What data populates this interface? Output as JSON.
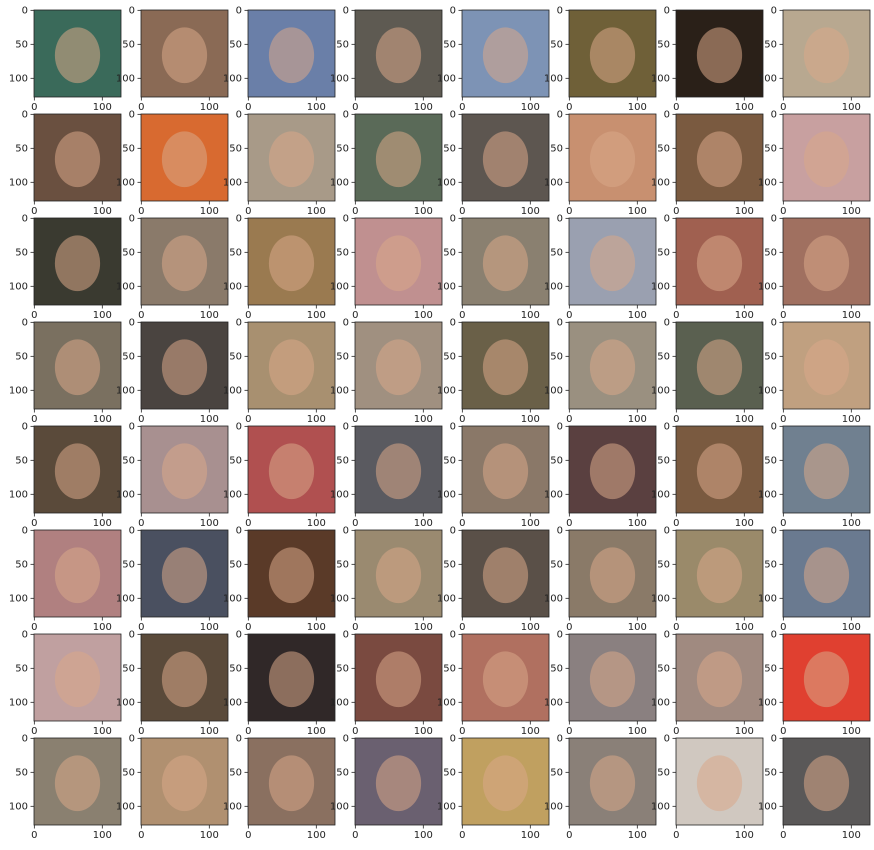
{
  "chart_data": {
    "type": "image_grid",
    "xlim": [
      -0.5,
      127.5
    ],
    "ylim": [
      127.5,
      -0.5
    ],
    "xticks": [
      0,
      100
    ],
    "yticks": [
      0,
      50,
      100
    ],
    "image_colors": [
      "#3a6a5a",
      "#8a6a55",
      "#6a7fa8",
      "#5e5a52",
      "#7d93b5",
      "#6f6038",
      "#2a2018",
      "#b8a890",
      "#6a5040",
      "#d86a30",
      "#a89a88",
      "#5a6a58",
      "#5d5650",
      "#c89070",
      "#7a5a40",
      "#c8a0a0",
      "#3a3a30",
      "#8a7a6a",
      "#9a7a50",
      "#c09090",
      "#8a8070",
      "#9aa0b0",
      "#a06050",
      "#a07060",
      "#7a7060",
      "#4a4440",
      "#a89070",
      "#a09080",
      "#6a6048",
      "#9a9080",
      "#5a6050",
      "#c0a080",
      "#5a4a3a",
      "#a89090",
      "#b05050",
      "#5a5a60",
      "#8a7868",
      "#5a4040",
      "#7a5a40",
      "#708090",
      "#b08080",
      "#4a5060",
      "#5a3a28",
      "#9a8a70",
      "#5a5048",
      "#8a7a68",
      "#9a8a6a",
      "#6a7a90",
      "#c0a0a0",
      "#5a4a3a",
      "#302828",
      "#7a4a40",
      "#b07060",
      "#8a8080",
      "#a08a80",
      "#e04030",
      "#8a8070",
      "#b09070",
      "#8a7060",
      "#6a6070",
      "#c0a060",
      "#8a8078",
      "#d0c8c0",
      "#5a5858"
    ]
  }
}
